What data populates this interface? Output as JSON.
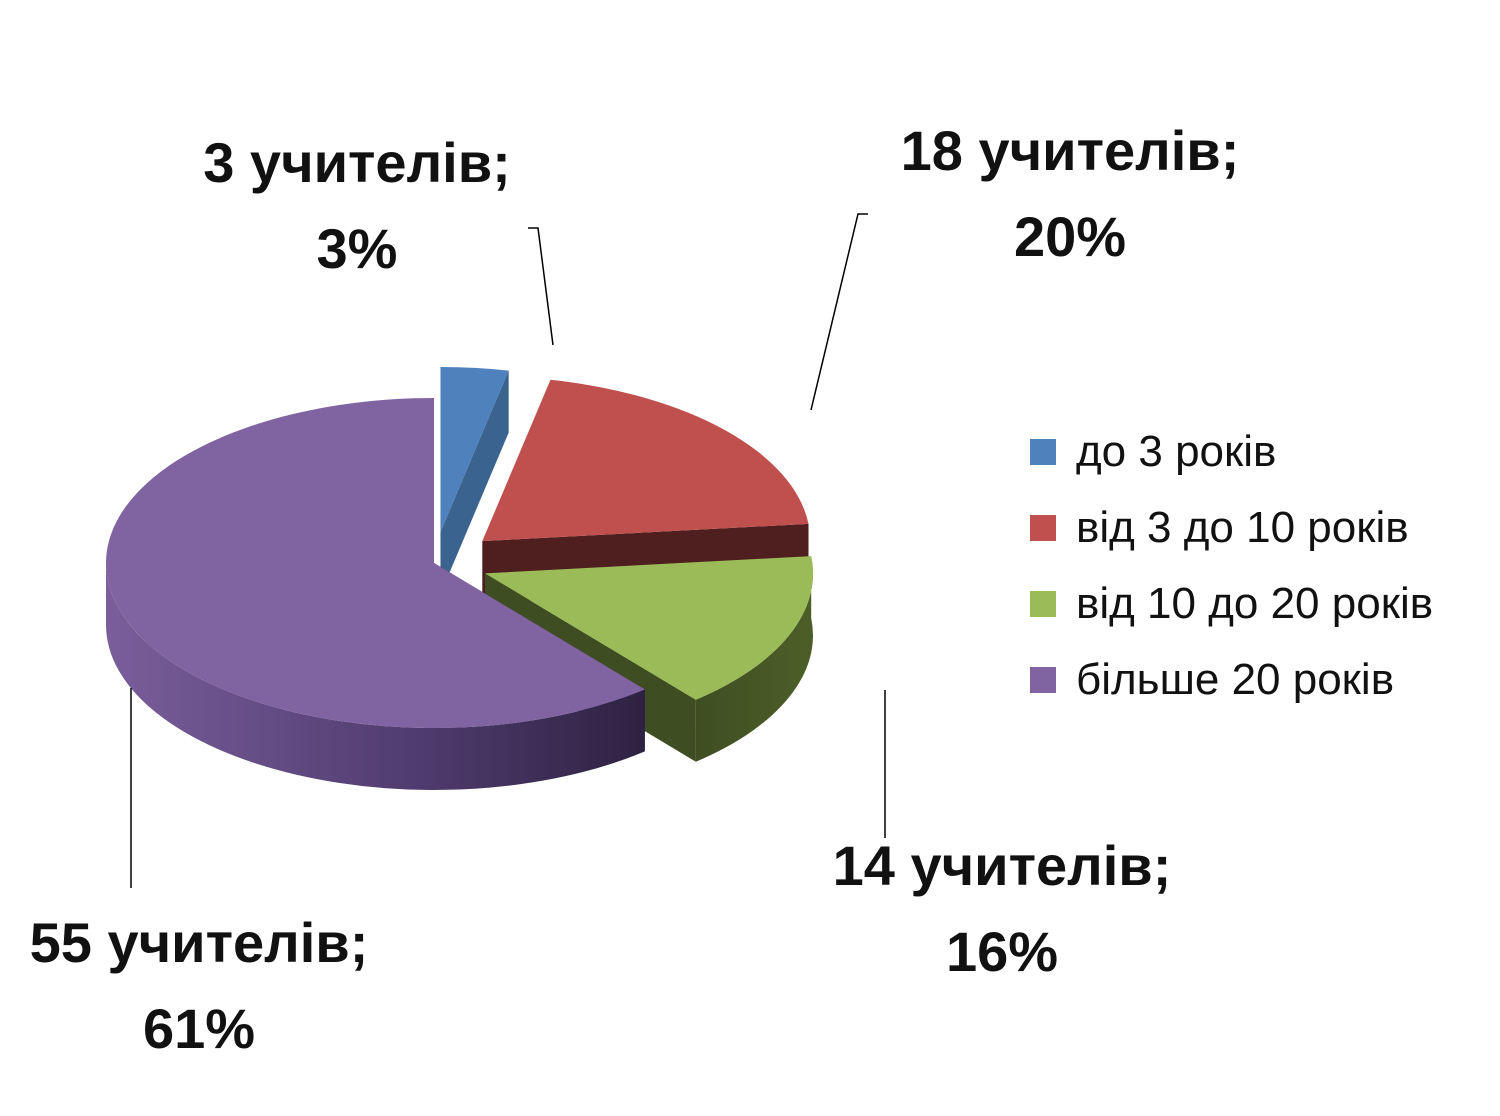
{
  "chart_data": {
    "type": "pie",
    "three_d": true,
    "exploded": true,
    "slices": [
      {
        "name": "до 3 років",
        "value": 3,
        "percent": 3,
        "label_count": "3 учителів;",
        "label_percent": "3%",
        "color": "#4F81BD",
        "dark": "#3A6390"
      },
      {
        "name": "від 3 до 10 років",
        "value": 18,
        "percent": 20,
        "label_count": "18 учителів;",
        "label_percent": "20%",
        "color": "#C0504D",
        "dark": "#4F1E1E"
      },
      {
        "name": "від 10 до 20 років",
        "value": 14,
        "percent": 16,
        "label_count": "14 учителів;",
        "label_percent": "16%",
        "color": "#9BBB59",
        "dark": "#3F4E22"
      },
      {
        "name": "більше 20 років",
        "value": 55,
        "percent": 61,
        "label_count": "55 учителів;",
        "label_percent": "61%",
        "color": "#8064A2",
        "dark": "#33264A"
      }
    ],
    "legend_position": "right"
  }
}
